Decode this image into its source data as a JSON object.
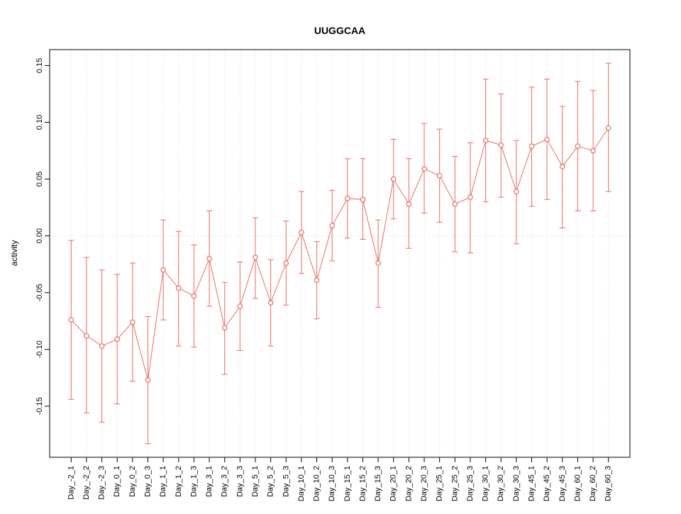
{
  "page": {
    "background": "#ffffff"
  },
  "chart_data": {
    "type": "line",
    "subtype": "means-with-error-bars",
    "title": "UUGGCAA",
    "xlabel": "",
    "ylabel": "activity",
    "ylim": [
      -0.195,
      0.164
    ],
    "yticks": [
      -0.15,
      -0.1,
      -0.05,
      0.0,
      0.05,
      0.1,
      0.15
    ],
    "ytick_labels": [
      "-0.15",
      "-0.10",
      "-0.05",
      "0.00",
      "0.05",
      "0.10",
      "0.15"
    ],
    "grid": "dotted vertical line at every category plus dotted horizontal line at y=0",
    "legend": "none",
    "colors": {
      "series": "#ee6a5f",
      "grid": "#d6d6d6",
      "axis": "#000000",
      "background": "#ffffff"
    },
    "categories": [
      "Day_-2_1",
      "Day_-2_2",
      "Day_-2_3",
      "Day_0_1",
      "Day_0_2",
      "Day_0_3",
      "Day_1_1",
      "Day_1_2",
      "Day_1_3",
      "Day_3_1",
      "Day_3_2",
      "Day_3_3",
      "Day_5_1",
      "Day_5_2",
      "Day_5_3",
      "Day_10_1",
      "Day_10_2",
      "Day_10_3",
      "Day_15_1",
      "Day_15_2",
      "Day_15_3",
      "Day_20_1",
      "Day_20_2",
      "Day_20_3",
      "Day_25_1",
      "Day_25_2",
      "Day_25_3",
      "Day_30_1",
      "Day_30_2",
      "Day_30_3",
      "Day_45_1",
      "Day_45_2",
      "Day_45_3",
      "Day_60_1",
      "Day_60_2",
      "Day_60_3"
    ],
    "series": [
      {
        "name": "activity",
        "values": [
          -0.074,
          -0.088,
          -0.097,
          -0.091,
          -0.076,
          -0.127,
          -0.03,
          -0.046,
          -0.053,
          -0.02,
          -0.081,
          -0.062,
          -0.019,
          -0.059,
          -0.024,
          0.003,
          -0.039,
          0.009,
          0.033,
          0.032,
          -0.024,
          0.05,
          0.028,
          0.059,
          0.053,
          0.028,
          0.034,
          0.084,
          0.08,
          0.039,
          0.079,
          0.085,
          0.061,
          0.079,
          0.075,
          0.095
        ],
        "ci_lower": [
          -0.144,
          -0.156,
          -0.164,
          -0.148,
          -0.128,
          -0.183,
          -0.074,
          -0.097,
          -0.098,
          -0.062,
          -0.122,
          -0.101,
          -0.055,
          -0.097,
          -0.061,
          -0.033,
          -0.073,
          -0.022,
          -0.002,
          -0.003,
          -0.063,
          0.015,
          -0.011,
          0.02,
          0.012,
          -0.014,
          -0.015,
          0.03,
          0.034,
          -0.007,
          0.026,
          0.032,
          0.007,
          0.022,
          0.022,
          0.039
        ],
        "ci_upper": [
          -0.004,
          -0.019,
          -0.03,
          -0.034,
          -0.024,
          -0.071,
          0.014,
          0.004,
          -0.008,
          0.022,
          -0.041,
          -0.023,
          0.016,
          -0.021,
          0.013,
          0.039,
          -0.005,
          0.04,
          0.068,
          0.068,
          0.014,
          0.085,
          0.068,
          0.099,
          0.094,
          0.07,
          0.082,
          0.138,
          0.125,
          0.084,
          0.131,
          0.138,
          0.114,
          0.136,
          0.128,
          0.152
        ]
      }
    ]
  }
}
